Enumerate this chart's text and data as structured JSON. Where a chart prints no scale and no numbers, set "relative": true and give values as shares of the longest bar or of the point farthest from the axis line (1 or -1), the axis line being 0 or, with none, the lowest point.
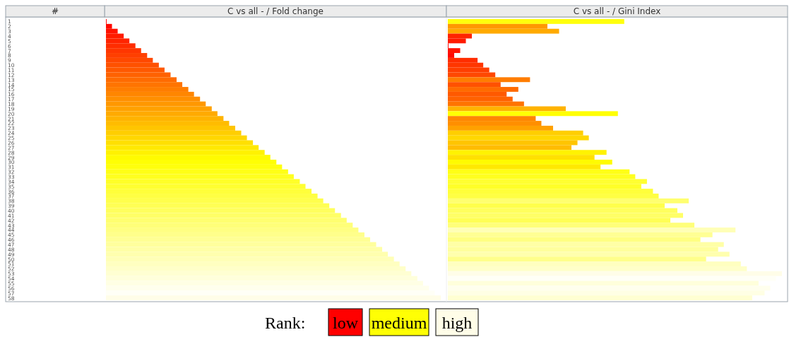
{
  "chart_data": [
    {
      "type": "bar",
      "orientation": "horizontal",
      "relative": true,
      "title": "C vs all - / Fold change",
      "ylabel": "#",
      "categories": [
        "1",
        "2",
        "3",
        "4",
        "5",
        "6",
        "7",
        "8",
        "9",
        "10",
        "11",
        "12",
        "13",
        "14",
        "15",
        "16",
        "17",
        "18",
        "19",
        "20",
        "21",
        "22",
        "23",
        "24",
        "25",
        "26",
        "27",
        "28",
        "29",
        "30",
        "31",
        "32",
        "33",
        "34",
        "35",
        "36",
        "37",
        "38",
        "39",
        "40",
        "41",
        "42",
        "43",
        "44",
        "45",
        "46",
        "47",
        "48",
        "49",
        "50",
        "51",
        "52",
        "53",
        "54",
        "55",
        "56",
        "57",
        "58"
      ],
      "values": [
        0.002,
        0.018,
        0.035,
        0.053,
        0.07,
        0.088,
        0.105,
        0.123,
        0.14,
        0.158,
        0.175,
        0.193,
        0.211,
        0.228,
        0.246,
        0.263,
        0.281,
        0.298,
        0.316,
        0.333,
        0.351,
        0.368,
        0.386,
        0.404,
        0.421,
        0.439,
        0.456,
        0.474,
        0.491,
        0.509,
        0.526,
        0.544,
        0.561,
        0.579,
        0.596,
        0.614,
        0.632,
        0.649,
        0.667,
        0.684,
        0.702,
        0.719,
        0.737,
        0.754,
        0.772,
        0.789,
        0.807,
        0.825,
        0.842,
        0.86,
        0.877,
        0.895,
        0.912,
        0.93,
        0.947,
        0.965,
        0.982,
        1
      ],
      "colors": [
        "#ff0000",
        "#ff0900",
        "#ff1200",
        "#ff1b00",
        "#ff2400",
        "#ff2d00",
        "#ff3600",
        "#ff3f00",
        "#ff4800",
        "#ff5100",
        "#ff5900",
        "#ff6200",
        "#ff6b00",
        "#ff7400",
        "#ff7d00",
        "#ff8600",
        "#ff8f00",
        "#ff9800",
        "#ffa100",
        "#ffaa00",
        "#ffb300",
        "#ffbc00",
        "#ffc500",
        "#ffce00",
        "#ffd700",
        "#ffe000",
        "#ffe900",
        "#fff200",
        "#fffb00",
        "#ffff04",
        "#ffff0d",
        "#ffff16",
        "#ffff1f",
        "#ffff28",
        "#ffff31",
        "#ffff3a",
        "#ffff43",
        "#ffff4c",
        "#ffff55",
        "#ffff5e",
        "#ffff67",
        "#ffff70",
        "#ffff79",
        "#ffff82",
        "#ffff8b",
        "#ffff94",
        "#ffff9d",
        "#ffffa6",
        "#ffffae",
        "#ffffb7",
        "#ffffc0",
        "#ffffc9",
        "#ffffd2",
        "#ffffdb",
        "#ffffe4",
        "#ffffed",
        "#fffff6",
        "#fffde8"
      ],
      "annotations": [
        "Rank:",
        "low",
        "medium",
        "high"
      ]
    },
    {
      "type": "bar",
      "orientation": "horizontal",
      "relative": true,
      "title": "C vs all - / Gini Index",
      "tick_labels": false,
      "categories": [
        "1",
        "2",
        "3",
        "4",
        "5",
        "6",
        "7",
        "8",
        "9",
        "10",
        "11",
        "12",
        "13",
        "14",
        "15",
        "16",
        "17",
        "18",
        "19",
        "20",
        "21",
        "22",
        "23",
        "24",
        "25",
        "26",
        "27",
        "28",
        "29",
        "30",
        "31",
        "32",
        "33",
        "34",
        "35",
        "36",
        "37",
        "38",
        "39",
        "40",
        "41",
        "42",
        "43",
        "44",
        "45",
        "46",
        "47",
        "48",
        "49",
        "50",
        "51",
        "52",
        "53",
        "54",
        "55",
        "56",
        "57",
        "58"
      ],
      "values": [
        0.528,
        0.298,
        0.333,
        0.072,
        0.054,
        0.002,
        0.037,
        0.019,
        0.089,
        0.106,
        0.124,
        0.142,
        0.246,
        0.158,
        0.211,
        0.176,
        0.194,
        0.228,
        0.353,
        0.509,
        0.263,
        0.28,
        0.315,
        0.405,
        0.422,
        0.388,
        0.37,
        0.475,
        0.439,
        0.492,
        0.457,
        0.544,
        0.561,
        0.596,
        0.579,
        0.614,
        0.631,
        0.721,
        0.649,
        0.687,
        0.704,
        0.666,
        0.738,
        0.861,
        0.792,
        0.756,
        0.826,
        0.809,
        0.843,
        0.773,
        0.877,
        0.895,
        1,
        0.982,
        0.93,
        0.965,
        0.948,
        0.911
      ],
      "colors": [
        "#ffff0d",
        "#ff9800",
        "#ffaa00",
        "#ff2400",
        "#ff1b00",
        "#ff0000",
        "#ff1200",
        "#ff0900",
        "#ff2d00",
        "#ff3600",
        "#ff3f00",
        "#ff4800",
        "#ff7d00",
        "#ff5100",
        "#ff6b00",
        "#ff5900",
        "#ff6200",
        "#ff7400",
        "#ffb300",
        "#ffff04",
        "#ff8600",
        "#ff8f00",
        "#ffa100",
        "#ffce00",
        "#ffd700",
        "#ffc500",
        "#ffbc00",
        "#fff200",
        "#ffe000",
        "#fffb00",
        "#ffe900",
        "#ffff16",
        "#ffff1f",
        "#ffff31",
        "#ffff28",
        "#ffff3a",
        "#ffff43",
        "#ffff70",
        "#ffff4c",
        "#ffff5e",
        "#ffff67",
        "#ffff55",
        "#ffff79",
        "#ffffb7",
        "#ffff94",
        "#ffff82",
        "#ffffa6",
        "#ffff9d",
        "#ffffae",
        "#ffff8b",
        "#ffffc0",
        "#ffffc9",
        "#fffde8",
        "#fffff6",
        "#ffffdb",
        "#ffffed",
        "#ffffe4",
        "#ffffd2"
      ]
    }
  ]
}
